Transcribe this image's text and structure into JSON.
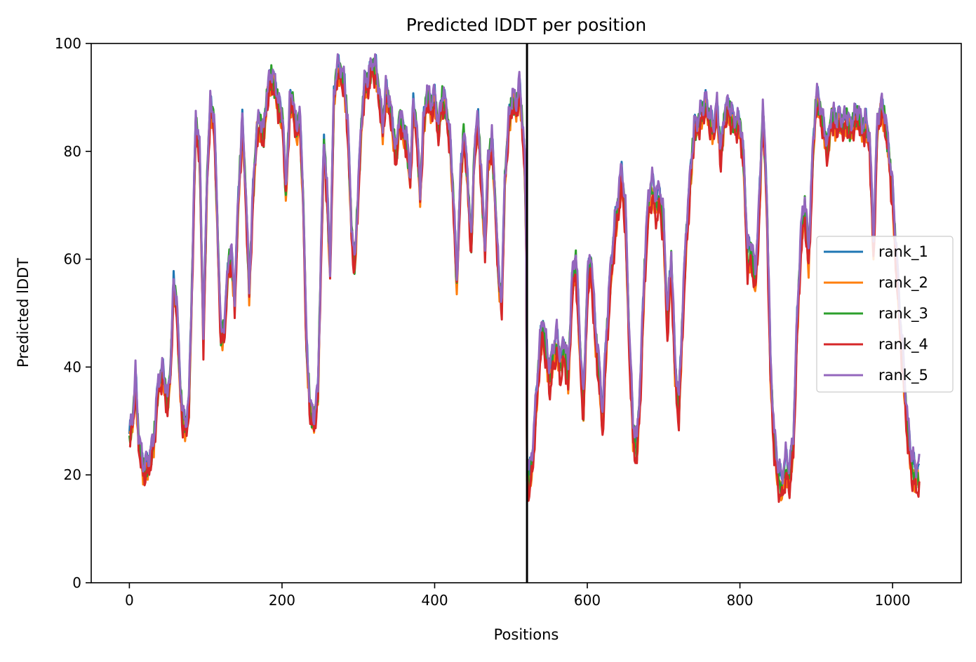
{
  "chart_data": {
    "type": "line",
    "title": "Predicted lDDT per position",
    "xlabel": "Positions",
    "ylabel": "Predicted lDDT",
    "xlim": [
      -50,
      1090
    ],
    "ylim": [
      0,
      100
    ],
    "xticks": [
      0,
      200,
      400,
      600,
      800,
      1000
    ],
    "yticks": [
      0,
      20,
      40,
      60,
      80,
      100
    ],
    "grid": false,
    "legend_position": "center-right",
    "chain_break_x": 521,
    "chain_break_color": "#000000",
    "n_positions": 1036,
    "series": [
      {
        "name": "rank_1",
        "color": "#1f77b4",
        "offset": 0.6
      },
      {
        "name": "rank_2",
        "color": "#ff7f0e",
        "offset": -0.8
      },
      {
        "name": "rank_3",
        "color": "#2ca02c",
        "offset": -0.2
      },
      {
        "name": "rank_4",
        "color": "#d62728",
        "offset": -1.4
      },
      {
        "name": "rank_5",
        "color": "#9467bd",
        "offset": 1.0
      }
    ],
    "profile": [
      [
        0,
        27
      ],
      [
        5,
        31
      ],
      [
        8,
        38
      ],
      [
        12,
        27
      ],
      [
        18,
        21
      ],
      [
        25,
        22
      ],
      [
        32,
        26
      ],
      [
        38,
        37
      ],
      [
        44,
        39
      ],
      [
        50,
        33
      ],
      [
        54,
        40
      ],
      [
        58,
        55
      ],
      [
        62,
        52
      ],
      [
        66,
        38
      ],
      [
        70,
        30
      ],
      [
        74,
        29
      ],
      [
        78,
        33
      ],
      [
        82,
        55
      ],
      [
        87,
        86
      ],
      [
        92,
        80
      ],
      [
        97,
        45
      ],
      [
        102,
        76
      ],
      [
        106,
        88
      ],
      [
        111,
        86
      ],
      [
        115,
        68
      ],
      [
        120,
        45
      ],
      [
        125,
        48
      ],
      [
        130,
        60
      ],
      [
        134,
        60
      ],
      [
        138,
        52
      ],
      [
        143,
        72
      ],
      [
        148,
        85
      ],
      [
        152,
        74
      ],
      [
        157,
        54
      ],
      [
        162,
        72
      ],
      [
        167,
        84
      ],
      [
        172,
        85
      ],
      [
        176,
        83
      ],
      [
        180,
        90
      ],
      [
        186,
        94
      ],
      [
        191,
        92
      ],
      [
        196,
        88
      ],
      [
        201,
        86
      ],
      [
        205,
        72
      ],
      [
        210,
        88
      ],
      [
        214,
        90
      ],
      [
        219,
        83
      ],
      [
        223,
        87
      ],
      [
        228,
        70
      ],
      [
        232,
        44
      ],
      [
        237,
        32
      ],
      [
        242,
        30
      ],
      [
        247,
        35
      ],
      [
        251,
        60
      ],
      [
        255,
        82
      ],
      [
        259,
        72
      ],
      [
        263,
        58
      ],
      [
        268,
        90
      ],
      [
        272,
        95
      ],
      [
        277,
        95
      ],
      [
        282,
        92
      ],
      [
        286,
        85
      ],
      [
        291,
        66
      ],
      [
        295,
        58
      ],
      [
        299,
        70
      ],
      [
        304,
        85
      ],
      [
        308,
        92
      ],
      [
        313,
        93
      ],
      [
        318,
        96
      ],
      [
        323,
        95
      ],
      [
        327,
        91
      ],
      [
        332,
        84
      ],
      [
        336,
        91
      ],
      [
        341,
        89
      ],
      [
        345,
        84
      ],
      [
        350,
        79
      ],
      [
        354,
        87
      ],
      [
        358,
        84
      ],
      [
        363,
        82
      ],
      [
        368,
        75
      ],
      [
        372,
        88
      ],
      [
        376,
        85
      ],
      [
        381,
        72
      ],
      [
        385,
        84
      ],
      [
        390,
        91
      ],
      [
        395,
        88
      ],
      [
        400,
        90
      ],
      [
        405,
        84
      ],
      [
        410,
        90
      ],
      [
        415,
        88
      ],
      [
        420,
        82
      ],
      [
        425,
        70
      ],
      [
        429,
        55
      ],
      [
        433,
        72
      ],
      [
        438,
        84
      ],
      [
        443,
        75
      ],
      [
        448,
        62
      ],
      [
        452,
        80
      ],
      [
        457,
        86
      ],
      [
        461,
        75
      ],
      [
        466,
        62
      ],
      [
        470,
        78
      ],
      [
        475,
        82
      ],
      [
        479,
        72
      ],
      [
        484,
        56
      ],
      [
        488,
        52
      ],
      [
        492,
        75
      ],
      [
        497,
        85
      ],
      [
        502,
        90
      ],
      [
        507,
        88
      ],
      [
        511,
        92
      ],
      [
        515,
        85
      ],
      [
        518,
        78
      ],
      [
        520,
        62
      ],
      [
        521,
        22
      ],
      [
        524,
        19
      ],
      [
        528,
        23
      ],
      [
        533,
        33
      ],
      [
        537,
        42
      ],
      [
        542,
        48
      ],
      [
        546,
        43
      ],
      [
        551,
        38
      ],
      [
        555,
        42
      ],
      [
        560,
        45
      ],
      [
        565,
        40
      ],
      [
        570,
        44
      ],
      [
        575,
        38
      ],
      [
        580,
        55
      ],
      [
        585,
        60
      ],
      [
        590,
        45
      ],
      [
        595,
        32
      ],
      [
        600,
        55
      ],
      [
        605,
        60
      ],
      [
        610,
        47
      ],
      [
        615,
        40
      ],
      [
        620,
        30
      ],
      [
        625,
        45
      ],
      [
        630,
        56
      ],
      [
        635,
        64
      ],
      [
        640,
        70
      ],
      [
        645,
        76
      ],
      [
        650,
        68
      ],
      [
        655,
        45
      ],
      [
        660,
        28
      ],
      [
        665,
        25
      ],
      [
        670,
        38
      ],
      [
        675,
        58
      ],
      [
        680,
        70
      ],
      [
        685,
        74
      ],
      [
        690,
        70
      ],
      [
        695,
        72
      ],
      [
        700,
        66
      ],
      [
        705,
        48
      ],
      [
        710,
        60
      ],
      [
        715,
        40
      ],
      [
        720,
        32
      ],
      [
        725,
        50
      ],
      [
        730,
        65
      ],
      [
        735,
        75
      ],
      [
        740,
        84
      ],
      [
        745,
        85
      ],
      [
        750,
        87
      ],
      [
        755,
        89
      ],
      [
        760,
        86
      ],
      [
        765,
        84
      ],
      [
        770,
        88
      ],
      [
        775,
        79
      ],
      [
        780,
        87
      ],
      [
        785,
        88
      ],
      [
        790,
        86
      ],
      [
        795,
        85
      ],
      [
        800,
        85
      ],
      [
        805,
        78
      ],
      [
        810,
        60
      ],
      [
        815,
        62
      ],
      [
        820,
        56
      ],
      [
        825,
        68
      ],
      [
        830,
        88
      ],
      [
        835,
        72
      ],
      [
        840,
        40
      ],
      [
        845,
        26
      ],
      [
        850,
        20
      ],
      [
        855,
        18
      ],
      [
        860,
        22
      ],
      [
        865,
        20
      ],
      [
        870,
        26
      ],
      [
        875,
        48
      ],
      [
        880,
        64
      ],
      [
        885,
        70
      ],
      [
        890,
        60
      ],
      [
        895,
        78
      ],
      [
        900,
        90
      ],
      [
        905,
        88
      ],
      [
        910,
        84
      ],
      [
        915,
        80
      ],
      [
        920,
        87
      ],
      [
        925,
        85
      ],
      [
        930,
        86
      ],
      [
        935,
        85
      ],
      [
        940,
        86
      ],
      [
        945,
        84
      ],
      [
        950,
        86
      ],
      [
        955,
        87
      ],
      [
        960,
        84
      ],
      [
        965,
        85
      ],
      [
        970,
        82
      ],
      [
        975,
        62
      ],
      [
        980,
        85
      ],
      [
        985,
        88
      ],
      [
        990,
        86
      ],
      [
        995,
        80
      ],
      [
        1000,
        72
      ],
      [
        1005,
        60
      ],
      [
        1010,
        48
      ],
      [
        1015,
        38
      ],
      [
        1020,
        28
      ],
      [
        1025,
        22
      ],
      [
        1030,
        20
      ],
      [
        1035,
        20
      ]
    ]
  }
}
